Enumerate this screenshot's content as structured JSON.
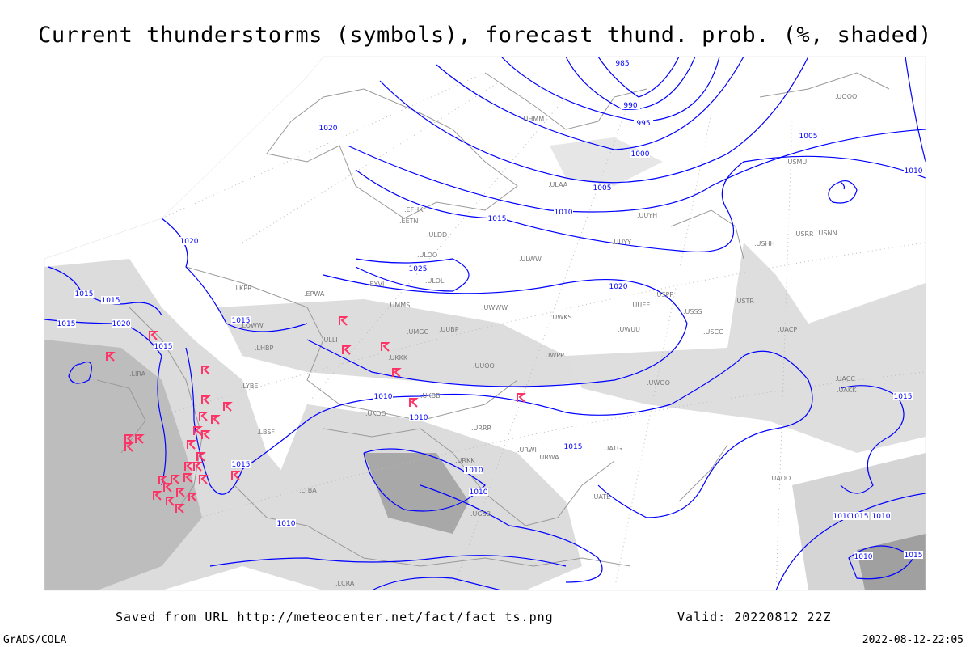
{
  "title": "Current thunderstorms (symbols), forecast thund. prob. (%, shaded)",
  "footer": {
    "source": "Saved from URL http://meteocenter.net/fact/fact_ts.png",
    "valid": "Valid: 20220812 22Z",
    "software": "GrADS/COLA",
    "timestamp": "2022-08-12-22:05"
  },
  "colors": {
    "isobar": "#0000ff",
    "storm_symbol": "#ff3366",
    "coast": "#999999",
    "shade_light": "#e6e6e6",
    "shade_mid": "#cccccc",
    "shade_dark": "#b0b0b0"
  },
  "symbols": {
    "thunderstorm": "thunderstorm-symbol"
  },
  "isobar_labels": [
    "985",
    "990",
    "995",
    "1000",
    "1005",
    "1010",
    "1015",
    "1020",
    "1025",
    "1020",
    "1020",
    "1015",
    "1015",
    "1015",
    "1020",
    "1015",
    "1015",
    "1010",
    "1010",
    "1015",
    "1010",
    "1010",
    "1005",
    "1010",
    "1015",
    "1010",
    "1010",
    "1015",
    "1010",
    "1015",
    "1015",
    "1010"
  ],
  "stations": [
    "LIRA",
    "LYBE",
    "LBSF",
    "LHBP",
    "LOWW",
    "LKPR",
    "EPWA",
    "EYVI",
    "UMMS",
    "ULLI",
    "EETN",
    "EFHK",
    "ULAA",
    "UUYY",
    "UUYH",
    "ULWW",
    "UWWW",
    "UMGG",
    "UUBP",
    "UKKK",
    "UKBB",
    "UKOO",
    "URRR",
    "URWA",
    "UATG",
    "UACC",
    "UAKK",
    "UACP",
    "USSS",
    "USCC",
    "USTR",
    "USHH",
    "USMU",
    "USRR",
    "USNN",
    "UUOO",
    "UWOO",
    "UWKS",
    "UWPP",
    "URWI",
    "UATE",
    "UAOO",
    "LTBA",
    "LCRA",
    "UGSB",
    "URKK",
    "UUEE",
    "ULOL",
    "ULDD",
    "UWUU",
    "USPP",
    "UOOO",
    "UHMM",
    "ULOO"
  ]
}
